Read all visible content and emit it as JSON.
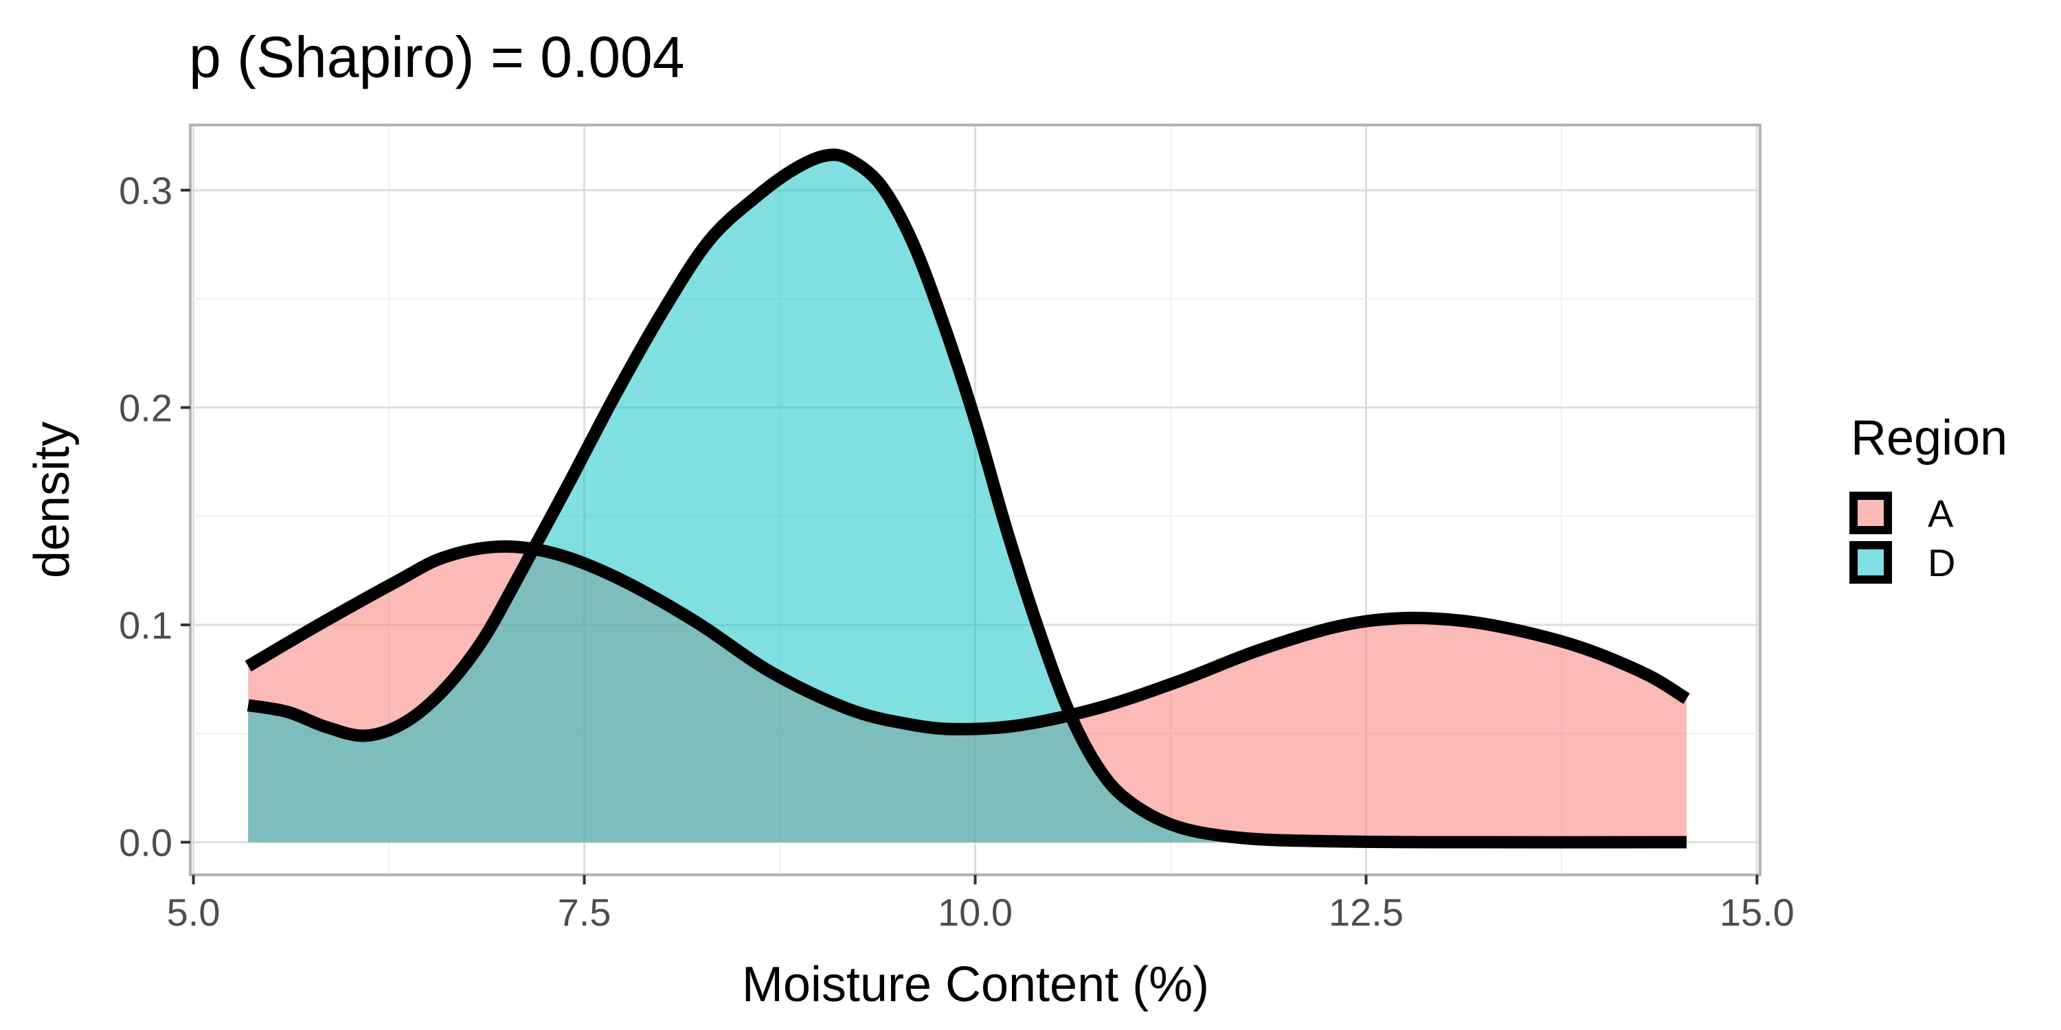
{
  "chart_data": {
    "type": "area",
    "title": "p (Shapiro) = 0.004",
    "xlabel": "Moisture Content (%)",
    "ylabel": "density",
    "xlim": [
      4.98,
      15.02
    ],
    "ylim": [
      -0.015,
      0.33
    ],
    "x_ticks": [
      5.0,
      7.5,
      10.0,
      12.5,
      15.0
    ],
    "x_tick_labels": [
      "5.0",
      "7.5",
      "10.0",
      "12.5",
      "15.0"
    ],
    "y_ticks": [
      0.0,
      0.1,
      0.2,
      0.3
    ],
    "y_tick_labels": [
      "0.0",
      "0.1",
      "0.2",
      "0.3"
    ],
    "grid": true,
    "legend": {
      "title": "Region",
      "position": "right"
    },
    "series": [
      {
        "name": "A",
        "color": "#F8766D",
        "points": [
          [
            5.35,
            0.081
          ],
          [
            5.8,
            0.1
          ],
          [
            6.3,
            0.12
          ],
          [
            6.6,
            0.131
          ],
          [
            6.95,
            0.136
          ],
          [
            7.3,
            0.133
          ],
          [
            7.7,
            0.122
          ],
          [
            8.2,
            0.102
          ],
          [
            8.7,
            0.078
          ],
          [
            9.2,
            0.061
          ],
          [
            9.6,
            0.054
          ],
          [
            9.9,
            0.052
          ],
          [
            10.3,
            0.054
          ],
          [
            10.8,
            0.062
          ],
          [
            11.3,
            0.074
          ],
          [
            11.8,
            0.088
          ],
          [
            12.3,
            0.099
          ],
          [
            12.7,
            0.103
          ],
          [
            13.1,
            0.102
          ],
          [
            13.5,
            0.097
          ],
          [
            13.9,
            0.089
          ],
          [
            14.3,
            0.077
          ],
          [
            14.55,
            0.066
          ]
        ]
      },
      {
        "name": "D",
        "color": "#00BFC4",
        "points": [
          [
            5.35,
            0.063
          ],
          [
            5.6,
            0.06
          ],
          [
            5.85,
            0.053
          ],
          [
            6.1,
            0.049
          ],
          [
            6.35,
            0.055
          ],
          [
            6.6,
            0.07
          ],
          [
            6.85,
            0.093
          ],
          [
            7.1,
            0.125
          ],
          [
            7.4,
            0.165
          ],
          [
            7.7,
            0.206
          ],
          [
            8.0,
            0.244
          ],
          [
            8.3,
            0.277
          ],
          [
            8.6,
            0.297
          ],
          [
            8.85,
            0.31
          ],
          [
            9.05,
            0.316
          ],
          [
            9.2,
            0.314
          ],
          [
            9.4,
            0.302
          ],
          [
            9.6,
            0.276
          ],
          [
            9.8,
            0.238
          ],
          [
            10.0,
            0.194
          ],
          [
            10.2,
            0.144
          ],
          [
            10.4,
            0.099
          ],
          [
            10.6,
            0.06
          ],
          [
            10.8,
            0.033
          ],
          [
            11.0,
            0.018
          ],
          [
            11.3,
            0.007
          ],
          [
            11.7,
            0.002
          ],
          [
            12.2,
            0.0005
          ],
          [
            13.0,
            0.0
          ],
          [
            14.55,
            0.0
          ]
        ]
      }
    ]
  }
}
